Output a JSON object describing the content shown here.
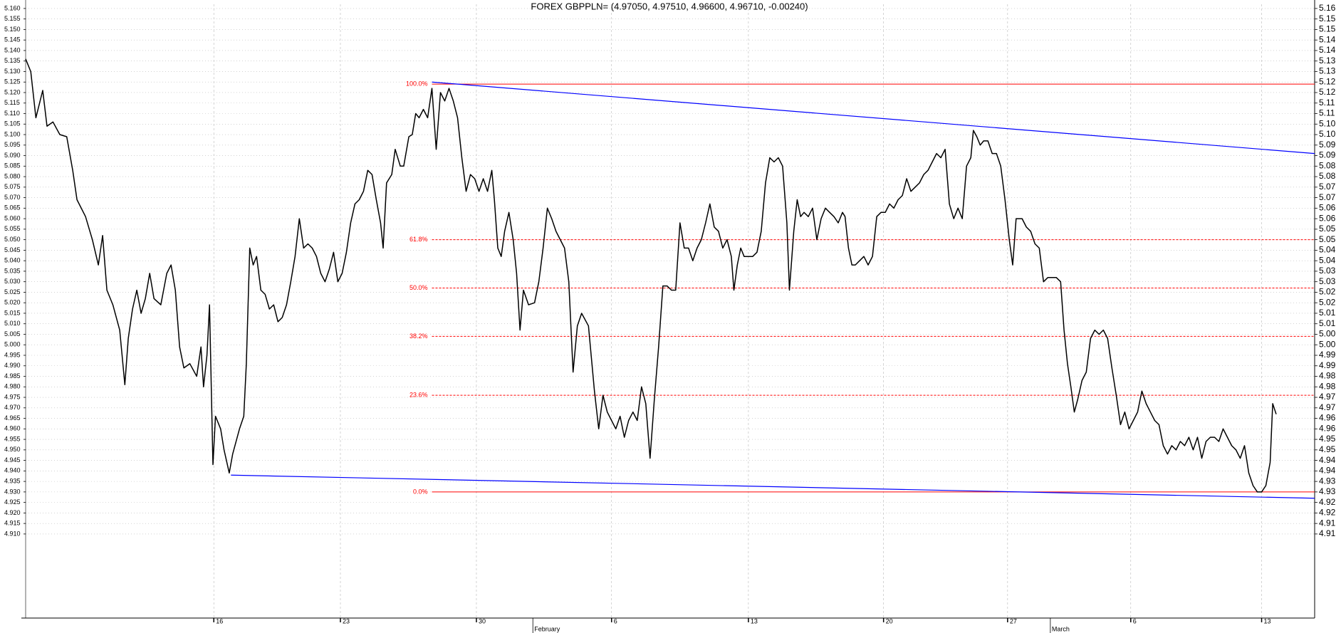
{
  "chart_data": {
    "type": "line",
    "title": "FOREX GBPPLN= (4.97050, 4.97510, 4.96600, 4.96710, -0.00240)",
    "grid": true,
    "xlim": [
      0,
      1507
    ],
    "ylim": [
      4.87,
      5.162
    ],
    "y2lim": [
      4.87,
      5.162
    ],
    "xticks": [
      {
        "value": 220,
        "label": "16"
      },
      {
        "value": 368,
        "label": "23"
      },
      {
        "value": 527,
        "label": "30"
      },
      {
        "value": 685,
        "label": "6"
      },
      {
        "value": 845,
        "label": "13"
      },
      {
        "value": 1003,
        "label": "20"
      },
      {
        "value": 1148,
        "label": "27"
      },
      {
        "value": 1292,
        "label": "6"
      },
      {
        "value": 1445,
        "label": "13"
      }
    ],
    "month_ticks": [
      {
        "value": 593,
        "label": "February"
      },
      {
        "value": 1198,
        "label": "March"
      }
    ],
    "yticks": [
      {
        "value": 5.16,
        "label": "5.160"
      },
      5.155,
      {
        "value": 5.15,
        "label": "5.150"
      },
      5.145,
      {
        "value": 5.14,
        "label": "5.140"
      },
      5.135,
      {
        "value": 5.13,
        "label": "5.130"
      },
      5.125,
      {
        "value": 5.12,
        "label": "5.120"
      },
      5.115,
      {
        "value": 5.11,
        "label": "5.110"
      },
      5.105,
      {
        "value": 5.1,
        "label": "5.100"
      },
      5.095,
      {
        "value": 5.09,
        "label": "5.090"
      },
      5.085,
      {
        "value": 5.08,
        "label": "5.080"
      },
      5.075,
      {
        "value": 5.07,
        "label": "5.070"
      },
      5.065,
      {
        "value": 5.06,
        "label": "5.060"
      },
      5.055,
      {
        "value": 5.05,
        "label": "5.050"
      },
      5.045,
      {
        "value": 5.04,
        "label": "5.040"
      },
      5.035,
      {
        "value": 5.03,
        "label": "5.030"
      },
      5.025,
      {
        "value": 5.02,
        "label": "5.020"
      },
      5.015,
      {
        "value": 5.01,
        "label": "5.010"
      },
      5.005,
      {
        "value": 5,
        "label": "5.000"
      },
      4.995,
      {
        "value": 4.99,
        "label": "4.990"
      },
      4.985,
      {
        "value": 4.98,
        "label": "4.980"
      },
      4.975,
      {
        "value": 4.97,
        "label": "4.970"
      },
      4.965,
      {
        "value": 4.96,
        "label": "4.960"
      },
      4.955,
      {
        "value": 4.95,
        "label": "4.950"
      },
      4.945,
      {
        "value": 4.94,
        "label": "4.940"
      },
      4.935,
      {
        "value": 4.93,
        "label": "4.930"
      },
      4.925,
      {
        "value": 4.92,
        "label": "4.920"
      },
      4.915,
      {
        "value": 4.91,
        "label": "4.910"
      }
    ],
    "y2ticks": [
      5.16,
      {
        "value": 5.155,
        "label": "5.15"
      },
      5.15,
      {
        "value": 5.145,
        "label": "5.14"
      },
      5.14,
      {
        "value": 5.135,
        "label": "5.13"
      },
      5.13,
      {
        "value": 5.125,
        "label": "5.12"
      },
      5.12,
      {
        "value": 5.115,
        "label": "5.11"
      },
      5.11,
      {
        "value": 5.105,
        "label": "5.10"
      },
      {
        "value": 5.1,
        "label": "5.10"
      },
      {
        "value": 5.095,
        "label": "5.09"
      },
      5.09,
      {
        "value": 5.085,
        "label": "5.08"
      },
      5.08,
      {
        "value": 5.075,
        "label": "5.07"
      },
      5.07,
      {
        "value": 5.065,
        "label": "5.06"
      },
      5.06,
      {
        "value": 5.055,
        "label": "5.05"
      },
      5.05,
      {
        "value": 5.045,
        "label": "5.04"
      },
      5.04,
      {
        "value": 5.035,
        "label": "5.03"
      },
      5.03,
      {
        "value": 5.025,
        "label": "5.02"
      },
      5.02,
      {
        "value": 5.015,
        "label": "5.01"
      },
      5.01,
      {
        "value": 5.005,
        "label": "5.00"
      },
      {
        "value": 5,
        "label": "5.00"
      },
      {
        "value": 4.995,
        "label": "4.99"
      },
      4.99,
      {
        "value": 4.985,
        "label": "4.98"
      },
      4.98,
      {
        "value": 4.975,
        "label": "4.97"
      },
      4.97,
      {
        "value": 4.965,
        "label": "4.96"
      },
      4.96,
      {
        "value": 4.955,
        "label": "4.95"
      },
      4.95,
      {
        "value": 4.945,
        "label": "4.94"
      },
      4.94,
      {
        "value": 4.935,
        "label": "4.93"
      },
      4.93,
      {
        "value": 4.925,
        "label": "4.92"
      },
      4.92,
      {
        "value": 4.915,
        "label": "4.91"
      },
      4.91
    ],
    "x": [
      0,
      6,
      12,
      20,
      25,
      32,
      40,
      48,
      55,
      60,
      70,
      78,
      85,
      90,
      95,
      102,
      110,
      116,
      120,
      125,
      130,
      135,
      140,
      145,
      150,
      158,
      165,
      170,
      175,
      180,
      185,
      192,
      200,
      205,
      208,
      212,
      215,
      219,
      222,
      228,
      232,
      238,
      242,
      250,
      255,
      258,
      262,
      266,
      270,
      275,
      280,
      285,
      290,
      295,
      300,
      305,
      310,
      315,
      320,
      325,
      330,
      335,
      340,
      345,
      350,
      355,
      360,
      365,
      370,
      375,
      380,
      385,
      390,
      395,
      400,
      405,
      410,
      415,
      418,
      422,
      428,
      432,
      438,
      442,
      448,
      452,
      456,
      460,
      465,
      470,
      475,
      480,
      485,
      490,
      495,
      500,
      505,
      510,
      515,
      520,
      525,
      530,
      535,
      540,
      545,
      548,
      552,
      556,
      560,
      565,
      570,
      574,
      578,
      582,
      588,
      595,
      600,
      605,
      610,
      615,
      620,
      625,
      630,
      635,
      640,
      645,
      650,
      658,
      665,
      670,
      675,
      680,
      685,
      690,
      695,
      700,
      705,
      710,
      715,
      720,
      725,
      730,
      735,
      740,
      745,
      750,
      755,
      760,
      765,
      770,
      775,
      780,
      785,
      790,
      795,
      800,
      805,
      810,
      815,
      820,
      825,
      828,
      832,
      836,
      840,
      845,
      850,
      855,
      860,
      865,
      870,
      875,
      880,
      885,
      890,
      893,
      898,
      902,
      906,
      910,
      915,
      920,
      925,
      930,
      935,
      940,
      945,
      950,
      955,
      958,
      962,
      966,
      970,
      975,
      980,
      985,
      990,
      995,
      1000,
      1005,
      1010,
      1015,
      1020,
      1025,
      1030,
      1035,
      1040,
      1045,
      1050,
      1055,
      1060,
      1065,
      1070,
      1075,
      1080,
      1085,
      1090,
      1095,
      1100,
      1105,
      1108,
      1112,
      1116,
      1120,
      1125,
      1130,
      1135,
      1140,
      1145,
      1150,
      1154,
      1158,
      1165,
      1170,
      1175,
      1180,
      1185,
      1190,
      1195,
      1200,
      1205,
      1210,
      1214,
      1218,
      1222,
      1226,
      1230,
      1235,
      1240,
      1245,
      1250,
      1255,
      1260,
      1265,
      1270,
      1275,
      1280,
      1285,
      1290,
      1295,
      1300,
      1305,
      1310,
      1315,
      1320,
      1325,
      1330,
      1335,
      1340,
      1345,
      1350,
      1355,
      1360,
      1365,
      1370,
      1375,
      1380,
      1385,
      1390,
      1395,
      1400,
      1405,
      1410,
      1415,
      1420,
      1425,
      1430,
      1435,
      1440,
      1445,
      1450,
      1455,
      1458,
      1462
    ],
    "series": [
      {
        "color": "#000000",
        "values": [
          5.136,
          5.13,
          5.108,
          5.121,
          5.104,
          5.106,
          5.1,
          5.099,
          5.083,
          5.069,
          5.061,
          5.05,
          5.038,
          5.052,
          5.026,
          5.019,
          5.007,
          4.981,
          5.003,
          5.017,
          5.026,
          5.015,
          5.022,
          5.034,
          5.022,
          5.019,
          5.034,
          5.038,
          5.026,
          4.999,
          4.989,
          4.991,
          4.985,
          4.999,
          4.98,
          4.995,
          5.019,
          4.943,
          4.966,
          4.96,
          4.95,
          4.939,
          4.948,
          4.96,
          4.966,
          4.991,
          5.046,
          5.038,
          5.042,
          5.026,
          5.024,
          5.017,
          5.019,
          5.011,
          5.013,
          5.019,
          5.03,
          5.042,
          5.06,
          5.046,
          5.048,
          5.046,
          5.042,
          5.034,
          5.03,
          5.036,
          5.044,
          5.03,
          5.034,
          5.044,
          5.058,
          5.067,
          5.069,
          5.073,
          5.083,
          5.081,
          5.069,
          5.058,
          5.046,
          5.077,
          5.081,
          5.093,
          5.085,
          5.085,
          5.099,
          5.1,
          5.11,
          5.108,
          5.112,
          5.108,
          5.122,
          5.093,
          5.12,
          5.116,
          5.122,
          5.116,
          5.108,
          5.089,
          5.073,
          5.081,
          5.079,
          5.073,
          5.079,
          5.073,
          5.083,
          5.069,
          5.046,
          5.042,
          5.054,
          5.063,
          5.05,
          5.034,
          5.007,
          5.026,
          5.019,
          5.02,
          5.03,
          5.046,
          5.065,
          5.06,
          5.054,
          5.05,
          5.046,
          5.03,
          4.987,
          5.009,
          5.015,
          5.009,
          4.978,
          4.96,
          4.976,
          4.968,
          4.964,
          4.96,
          4.966,
          4.956,
          4.964,
          4.968,
          4.964,
          4.98,
          4.972,
          4.946,
          4.974,
          4.999,
          5.028,
          5.028,
          5.026,
          5.026,
          5.058,
          5.046,
          5.046,
          5.04,
          5.046,
          5.05,
          5.058,
          5.067,
          5.056,
          5.054,
          5.046,
          5.05,
          5.042,
          5.026,
          5.038,
          5.046,
          5.042,
          5.042,
          5.042,
          5.044,
          5.054,
          5.077,
          5.089,
          5.087,
          5.089,
          5.085,
          5.058,
          5.026,
          5.054,
          5.069,
          5.061,
          5.063,
          5.061,
          5.065,
          5.05,
          5.06,
          5.065,
          5.063,
          5.061,
          5.058,
          5.063,
          5.061,
          5.046,
          5.038,
          5.038,
          5.04,
          5.042,
          5.038,
          5.042,
          5.061,
          5.063,
          5.063,
          5.067,
          5.065,
          5.069,
          5.071,
          5.079,
          5.073,
          5.075,
          5.077,
          5.081,
          5.083,
          5.087,
          5.091,
          5.089,
          5.093,
          5.067,
          5.06,
          5.065,
          5.06,
          5.085,
          5.089,
          5.102,
          5.099,
          5.095,
          5.097,
          5.097,
          5.091,
          5.091,
          5.085,
          5.069,
          5.05,
          5.038,
          5.06,
          5.06,
          5.056,
          5.054,
          5.048,
          5.046,
          5.03,
          5.032,
          5.032,
          5.032,
          5.03,
          5.007,
          4.991,
          4.98,
          4.968,
          4.974,
          4.983,
          4.987,
          5.003,
          5.007,
          5.005,
          5.007,
          5.003,
          4.989,
          4.976,
          4.962,
          4.968,
          4.96,
          4.964,
          4.968,
          4.978,
          4.972,
          4.968,
          4.964,
          4.962,
          4.952,
          4.948,
          4.952,
          4.95,
          4.954,
          4.952,
          4.956,
          4.95,
          4.956,
          4.946,
          4.954,
          4.956,
          4.956,
          4.954,
          4.96,
          4.956,
          4.952,
          4.95,
          4.946,
          4.952,
          4.939,
          4.933,
          4.93,
          4.93,
          4.933,
          4.944,
          4.972,
          4.967
        ]
      }
    ],
    "fibonacci": {
      "color": "#ff0000",
      "x_start": 475,
      "levels": [
        {
          "label": "100.0%",
          "value": 5.124
        },
        {
          "label": "61.8%",
          "value": 5.05
        },
        {
          "label": "50.0%",
          "value": 5.027
        },
        {
          "label": "38.2%",
          "value": 5.004
        },
        {
          "label": "23.6%",
          "value": 4.976
        },
        {
          "label": "0.0%",
          "value": 4.93
        }
      ]
    },
    "trend_lines": [
      {
        "color": "#0000ff",
        "x": [
          475,
          1507
        ],
        "values": [
          5.125,
          5.091
        ]
      },
      {
        "color": "#0000ff",
        "x": [
          240,
          1507
        ],
        "values": [
          4.938,
          4.927
        ]
      }
    ]
  }
}
